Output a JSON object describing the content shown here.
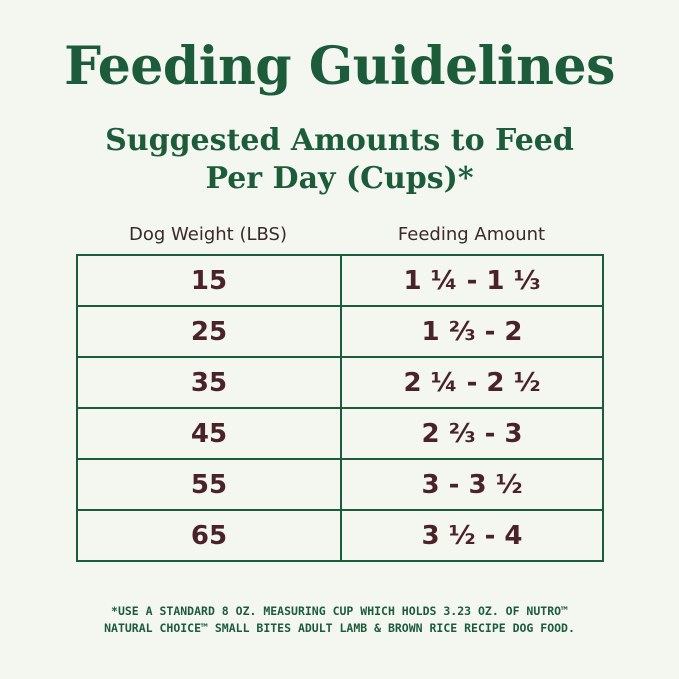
{
  "title": "Feeding Guidelines",
  "subtitle_line1": "Suggested Amounts to Feed",
  "subtitle_line2": "Per Day (Cups)*",
  "table": {
    "headers": [
      "Dog Weight (LBS)",
      "Feeding Amount"
    ],
    "rows": [
      {
        "weight": "15",
        "amount": "1 ¼ - 1 ⅓"
      },
      {
        "weight": "25",
        "amount": "1 ⅔ - 2"
      },
      {
        "weight": "35",
        "amount": "2 ¼ - 2 ½"
      },
      {
        "weight": "45",
        "amount": "2 ⅔ - 3"
      },
      {
        "weight": "55",
        "amount": "3 - 3 ½"
      },
      {
        "weight": "65",
        "amount": "3 ½ - 4"
      }
    ]
  },
  "footnote_line1": "*USE A STANDARD 8 OZ. MEASURING CUP WHICH HOLDS 3.23 OZ. OF NUTRO™",
  "footnote_line2": "NATURAL CHOICE™ SMALL BITES ADULT LAMB & BROWN RICE RECIPE DOG FOOD.",
  "colors": {
    "green": "#1d5c3b",
    "brown": "#4a2328",
    "background": "#f4f6f0"
  }
}
